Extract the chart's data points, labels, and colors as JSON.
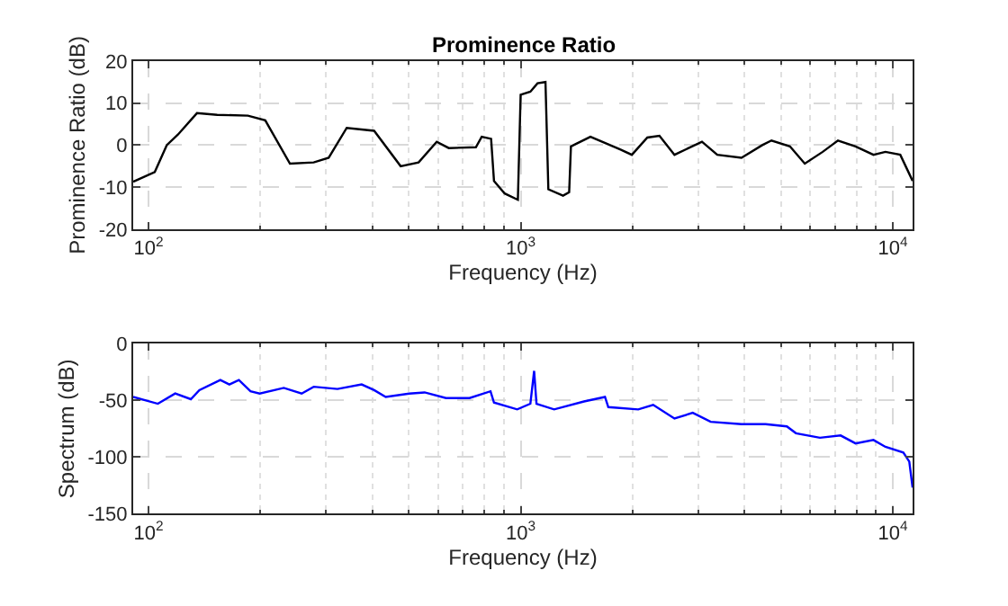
{
  "chart_data": [
    {
      "type": "line",
      "title": "Prominence Ratio",
      "xlabel": "Frequency (Hz)",
      "ylabel": "Prominence Ratio (dB)",
      "log": "x",
      "grid": true,
      "line_style": "solid",
      "marker": "none",
      "xlim": [
        91,
        11300
      ],
      "ylim": [
        -20,
        20
      ],
      "yticks": [
        -20,
        -10,
        0,
        10,
        20
      ],
      "xticks": [
        {
          "value": 100,
          "label": "10$^{2}$"
        },
        {
          "value": 200,
          "label": null
        },
        {
          "value": 300,
          "label": null
        },
        {
          "value": 400,
          "label": null
        },
        {
          "value": 500,
          "label": null
        },
        {
          "value": 600,
          "label": null
        },
        {
          "value": 700,
          "label": null
        },
        {
          "value": 800,
          "label": null
        },
        {
          "value": 900,
          "label": null
        },
        {
          "value": 1000,
          "label": "10$^{3}$"
        },
        {
          "value": 2000,
          "label": null
        },
        {
          "value": 3000,
          "label": null
        },
        {
          "value": 4000,
          "label": null
        },
        {
          "value": 5000,
          "label": null
        },
        {
          "value": 6000,
          "label": null
        },
        {
          "value": 7000,
          "label": null
        },
        {
          "value": 8000,
          "label": null
        },
        {
          "value": 9000,
          "label": null
        },
        {
          "value": 10000,
          "label": "10$^{4}$"
        }
      ],
      "x": [
        91,
        104,
        112,
        120,
        135,
        153,
        185,
        206,
        240,
        278,
        305,
        341,
        404,
        476,
        532,
        595,
        641,
        758,
        786,
        833,
        848,
        906,
        983,
        1000,
        1062,
        1110,
        1166,
        1187,
        1300,
        1350,
        1365,
        1540,
        1850,
        1990,
        2190,
        2360,
        2590,
        3070,
        3375,
        3920,
        4460,
        4720,
        5290,
        5800,
        6480,
        7120,
        7940,
        8870,
        9550,
        10470,
        11300
      ],
      "series": [
        {
          "color": "#000000",
          "values": [
            -8.7,
            -6.4,
            0,
            2.5,
            7.6,
            7.2,
            7,
            5.9,
            -4.4,
            -4.1,
            -3,
            4.1,
            3.4,
            -5,
            -4.1,
            0.8,
            -0.7,
            -0.5,
            2,
            1.5,
            -8.5,
            -11.5,
            -13,
            12,
            12.7,
            14.7,
            15,
            -10.5,
            -12,
            -11.2,
            -0.3,
            2,
            -1,
            -2.3,
            1.8,
            2.2,
            -2.3,
            0.8,
            -2.3,
            -3,
            0,
            1.1,
            -0.3,
            -4.4,
            -1.6,
            1.1,
            -0.3,
            -2.3,
            -1.6,
            -2.3,
            -8.5
          ]
        }
      ]
    },
    {
      "type": "line",
      "xlabel": "Frequency (Hz)",
      "ylabel": "Spectrum (dB)",
      "log": "x",
      "grid": true,
      "line_style": "solid",
      "marker": "none",
      "xlim": [
        91,
        11300
      ],
      "ylim": [
        -150,
        0
      ],
      "yticks": [
        -150,
        -100,
        -50,
        0
      ],
      "xticks": [
        {
          "value": 100,
          "label": "10$^{2}$"
        },
        {
          "value": 200,
          "label": null
        },
        {
          "value": 300,
          "label": null
        },
        {
          "value": 400,
          "label": null
        },
        {
          "value": 500,
          "label": null
        },
        {
          "value": 600,
          "label": null
        },
        {
          "value": 700,
          "label": null
        },
        {
          "value": 800,
          "label": null
        },
        {
          "value": 900,
          "label": null
        },
        {
          "value": 1000,
          "label": "10$^{3}$"
        },
        {
          "value": 2000,
          "label": null
        },
        {
          "value": 3000,
          "label": null
        },
        {
          "value": 4000,
          "label": null
        },
        {
          "value": 5000,
          "label": null
        },
        {
          "value": 6000,
          "label": null
        },
        {
          "value": 7000,
          "label": null
        },
        {
          "value": 8000,
          "label": null
        },
        {
          "value": 9000,
          "label": null
        },
        {
          "value": 10000,
          "label": "10$^{4}$"
        }
      ],
      "x": [
        91,
        106,
        118,
        130,
        137,
        156,
        165,
        175,
        188,
        199,
        231,
        258,
        278,
        322,
        374,
        404,
        434,
        502,
        552,
        630,
        729,
        830,
        848,
        979,
        1062,
        1087,
        1103,
        1230,
        1480,
        1685,
        1720,
        2070,
        2270,
        2590,
        2900,
        3240,
        3920,
        4550,
        5190,
        5490,
        6370,
        7240,
        7940,
        8870,
        9550,
        10670,
        11070,
        11300
      ],
      "series": [
        {
          "color": "#0000ff",
          "values": [
            -47,
            -53,
            -44,
            -49,
            -41,
            -32,
            -36,
            -32,
            -42,
            -44,
            -39,
            -44,
            -38,
            -40,
            -36,
            -41,
            -47,
            -44,
            -43,
            -48,
            -48,
            -42,
            -52,
            -58,
            -53,
            -24,
            -53,
            -58,
            -51,
            -47,
            -56,
            -58,
            -54,
            -66,
            -61,
            -69,
            -71,
            -71,
            -73,
            -79,
            -83,
            -81,
            -88,
            -85,
            -91,
            -96,
            -104,
            -127
          ]
        }
      ]
    }
  ]
}
